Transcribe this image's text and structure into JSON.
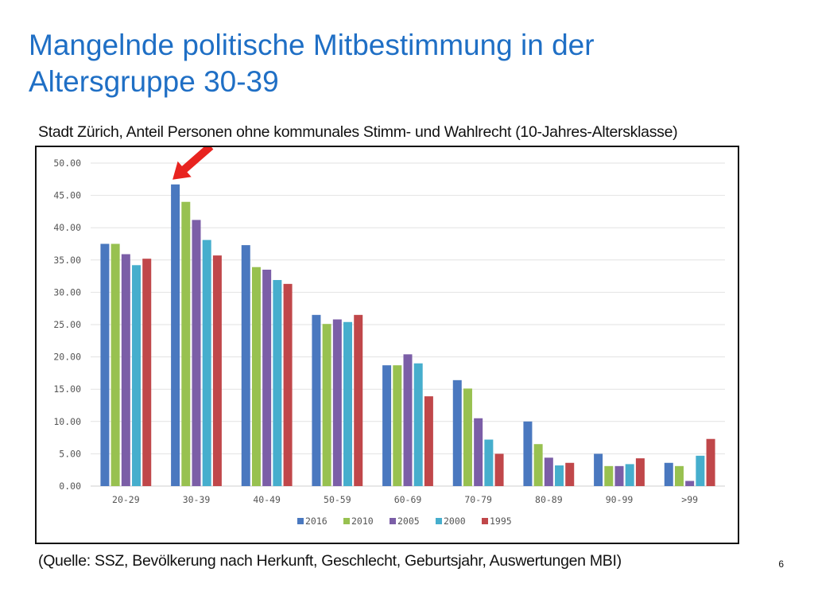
{
  "slide": {
    "title_line1": "Mangelnde politische Mitbestimmung in der",
    "title_line2": "Altersgruppe 30-39",
    "page_number": "6",
    "title_color": "#1f6fc5"
  },
  "chart_heading": "Stadt Zürich, Anteil Personen ohne kommunales Stimm- und Wahlrecht (10-Jahres-Altersklasse)",
  "source_note": "(Quelle: SSZ, Bevölkerung nach Herkunft, Geschlecht, Geburtsjahr, Auswertungen MBI)",
  "chart_data": {
    "type": "bar",
    "categories": [
      "20-29",
      "30-39",
      "40-49",
      "50-59",
      "60-69",
      "70-79",
      "80-89",
      "90-99",
      ">99"
    ],
    "series": [
      {
        "name": "2016",
        "color": "#4a78bf",
        "values": [
          37.5,
          46.7,
          37.3,
          26.5,
          18.7,
          16.4,
          10.0,
          5.0,
          3.6
        ]
      },
      {
        "name": "2010",
        "color": "#98c150",
        "values": [
          37.5,
          44.0,
          33.9,
          25.1,
          18.7,
          15.1,
          6.5,
          3.1,
          3.1
        ]
      },
      {
        "name": "2005",
        "color": "#7b5ea7",
        "values": [
          35.9,
          41.2,
          33.5,
          25.8,
          20.4,
          10.5,
          4.4,
          3.1,
          0.8
        ]
      },
      {
        "name": "2000",
        "color": "#46aecd",
        "values": [
          34.2,
          38.1,
          31.9,
          25.4,
          19.0,
          7.2,
          3.2,
          3.4,
          4.7
        ]
      },
      {
        "name": "1995",
        "color": "#c0474a",
        "values": [
          35.2,
          35.7,
          31.3,
          26.5,
          13.9,
          5.0,
          3.6,
          4.3,
          7.3
        ]
      }
    ],
    "y_ticks": [
      "0.00",
      "5.00",
      "10.00",
      "15.00",
      "20.00",
      "25.00",
      "30.00",
      "35.00",
      "40.00",
      "45.00",
      "50.00"
    ],
    "ylim": [
      0,
      50
    ],
    "grid": true,
    "legend_position": "bottom",
    "annotation": {
      "type": "arrow",
      "color": "#e8231f",
      "points_to_category": "30-39"
    }
  }
}
